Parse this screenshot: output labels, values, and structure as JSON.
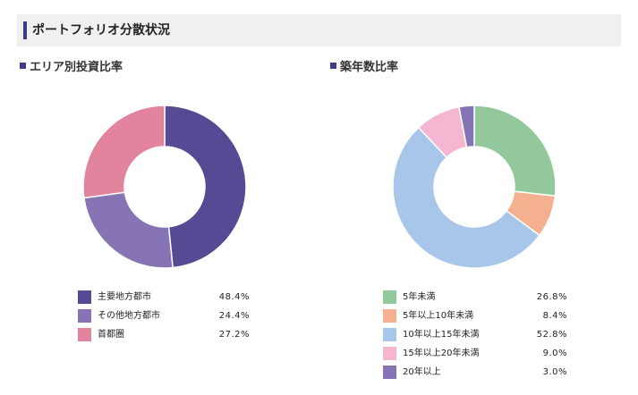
{
  "header": {
    "title": "ポートフォリオ分散状況"
  },
  "chart_data": [
    {
      "type": "pie",
      "title": "エリア別投資比率",
      "categories": [
        "主要地方都市",
        "その他地方都市",
        "首都圏"
      ],
      "values": [
        48.4,
        24.4,
        27.2
      ],
      "value_labels": [
        "48.4%",
        "24.4%",
        "27.2%"
      ],
      "colors": [
        "#564a94",
        "#8774b4",
        "#e3849f"
      ],
      "legend_position": "bottom"
    },
    {
      "type": "pie",
      "title": "築年数比率",
      "categories": [
        "5年未満",
        "5年以上10年未満",
        "10年以上15年未満",
        "15年以上20年未満",
        "20年以上"
      ],
      "values": [
        26.8,
        8.4,
        52.8,
        9.0,
        3.0
      ],
      "value_labels": [
        "26.8%",
        "8.4%",
        "52.8%",
        "9.0%",
        "3.0%"
      ],
      "colors": [
        "#93c89c",
        "#f5b08f",
        "#a7c6e9",
        "#f4b6d1",
        "#8774b4"
      ],
      "legend_position": "bottom"
    }
  ]
}
